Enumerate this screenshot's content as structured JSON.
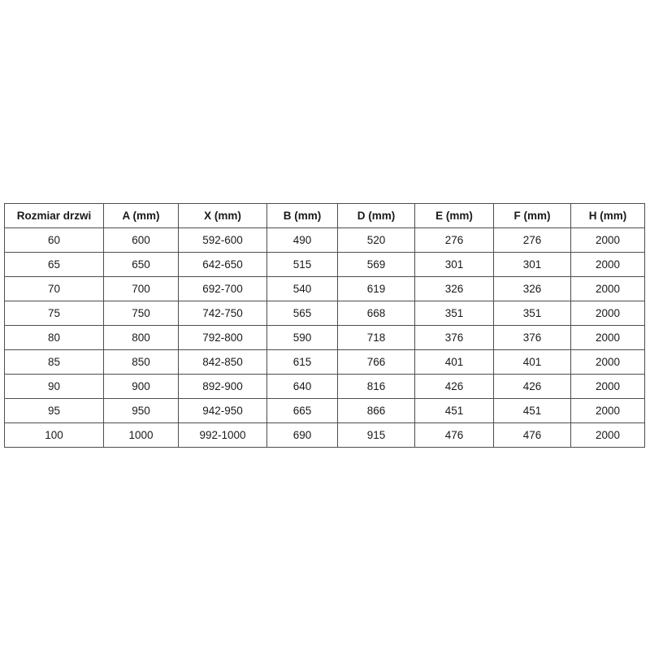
{
  "page": {
    "background": "#ffffff",
    "border_color": "#4d4d4d",
    "text_color": "#1a1a1a"
  },
  "table": {
    "title": "door-dimensions-table",
    "columns": [
      "Rozmiar drzwi",
      "A (mm)",
      "X (mm)",
      "B (mm)",
      "D (mm)",
      "E (mm)",
      "F (mm)",
      "H (mm)"
    ],
    "rows": [
      [
        "60",
        "600",
        "592-600",
        "490",
        "520",
        "276",
        "276",
        "2000"
      ],
      [
        "65",
        "650",
        "642-650",
        "515",
        "569",
        "301",
        "301",
        "2000"
      ],
      [
        "70",
        "700",
        "692-700",
        "540",
        "619",
        "326",
        "326",
        "2000"
      ],
      [
        "75",
        "750",
        "742-750",
        "565",
        "668",
        "351",
        "351",
        "2000"
      ],
      [
        "80",
        "800",
        "792-800",
        "590",
        "718",
        "376",
        "376",
        "2000"
      ],
      [
        "85",
        "850",
        "842-850",
        "615",
        "766",
        "401",
        "401",
        "2000"
      ],
      [
        "90",
        "900",
        "892-900",
        "640",
        "816",
        "426",
        "426",
        "2000"
      ],
      [
        "95",
        "950",
        "942-950",
        "665",
        "866",
        "451",
        "451",
        "2000"
      ],
      [
        "100",
        "1000",
        "992-1000",
        "690",
        "915",
        "476",
        "476",
        "2000"
      ]
    ]
  }
}
